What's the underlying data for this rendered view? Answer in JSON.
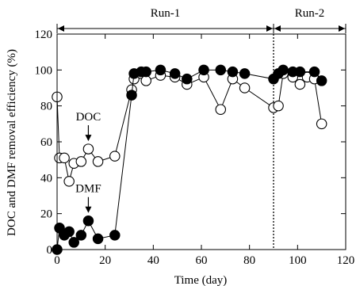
{
  "chart_data": {
    "type": "scatter",
    "xlabel": "Time (day)",
    "ylabel": "DOC and DMF removal efficiency (%)",
    "xlim": [
      0,
      120
    ],
    "ylim": [
      0,
      120
    ],
    "x_ticks": [
      "0",
      "20",
      "40",
      "60",
      "80",
      "100",
      "120"
    ],
    "y_ticks": [
      "0",
      "20",
      "40",
      "60",
      "80",
      "100",
      "120"
    ],
    "grid": false,
    "phases": [
      {
        "label": "Run-1",
        "start": 0,
        "end": 90
      },
      {
        "label": "Run-2",
        "start": 90,
        "end": 120
      }
    ],
    "divider_x": 90,
    "annotations": [
      {
        "text": "DOC",
        "series": "DOC",
        "x": 13,
        "y": 56
      },
      {
        "text": "DMF",
        "series": "DMF",
        "x": 13,
        "y": 16
      }
    ],
    "series": [
      {
        "name": "DOC",
        "marker": "open-circle",
        "color": "#000000",
        "points": [
          {
            "x": 0,
            "y": 85
          },
          {
            "x": 1,
            "y": 51
          },
          {
            "x": 3,
            "y": 51
          },
          {
            "x": 5,
            "y": 38
          },
          {
            "x": 7,
            "y": 48
          },
          {
            "x": 10,
            "y": 49
          },
          {
            "x": 13,
            "y": 56
          },
          {
            "x": 17,
            "y": 49
          },
          {
            "x": 24,
            "y": 52
          },
          {
            "x": 31,
            "y": 89
          },
          {
            "x": 32,
            "y": 95
          },
          {
            "x": 35,
            "y": 98
          },
          {
            "x": 37,
            "y": 94
          },
          {
            "x": 43,
            "y": 97
          },
          {
            "x": 49,
            "y": 96
          },
          {
            "x": 54,
            "y": 92
          },
          {
            "x": 61,
            "y": 96
          },
          {
            "x": 68,
            "y": 78
          },
          {
            "x": 73,
            "y": 95
          },
          {
            "x": 78,
            "y": 90
          },
          {
            "x": 90,
            "y": 79
          },
          {
            "x": 92,
            "y": 80
          },
          {
            "x": 94,
            "y": 98
          },
          {
            "x": 98,
            "y": 96
          },
          {
            "x": 101,
            "y": 92
          },
          {
            "x": 104,
            "y": 96
          },
          {
            "x": 107,
            "y": 95
          },
          {
            "x": 110,
            "y": 70
          }
        ]
      },
      {
        "name": "DMF",
        "marker": "filled-circle",
        "color": "#000000",
        "points": [
          {
            "x": 0,
            "y": 0
          },
          {
            "x": 1,
            "y": 12
          },
          {
            "x": 3,
            "y": 8
          },
          {
            "x": 5,
            "y": 10
          },
          {
            "x": 7,
            "y": 4
          },
          {
            "x": 10,
            "y": 8
          },
          {
            "x": 13,
            "y": 16
          },
          {
            "x": 17,
            "y": 6
          },
          {
            "x": 24,
            "y": 8
          },
          {
            "x": 31,
            "y": 86
          },
          {
            "x": 32,
            "y": 98
          },
          {
            "x": 35,
            "y": 99
          },
          {
            "x": 37,
            "y": 99
          },
          {
            "x": 43,
            "y": 100
          },
          {
            "x": 49,
            "y": 98
          },
          {
            "x": 54,
            "y": 95
          },
          {
            "x": 61,
            "y": 100
          },
          {
            "x": 68,
            "y": 100
          },
          {
            "x": 73,
            "y": 99
          },
          {
            "x": 78,
            "y": 98
          },
          {
            "x": 90,
            "y": 95
          },
          {
            "x": 92,
            "y": 98
          },
          {
            "x": 94,
            "y": 100
          },
          {
            "x": 98,
            "y": 99
          },
          {
            "x": 101,
            "y": 99
          },
          {
            "x": 107,
            "y": 99
          },
          {
            "x": 110,
            "y": 94
          }
        ]
      }
    ]
  }
}
